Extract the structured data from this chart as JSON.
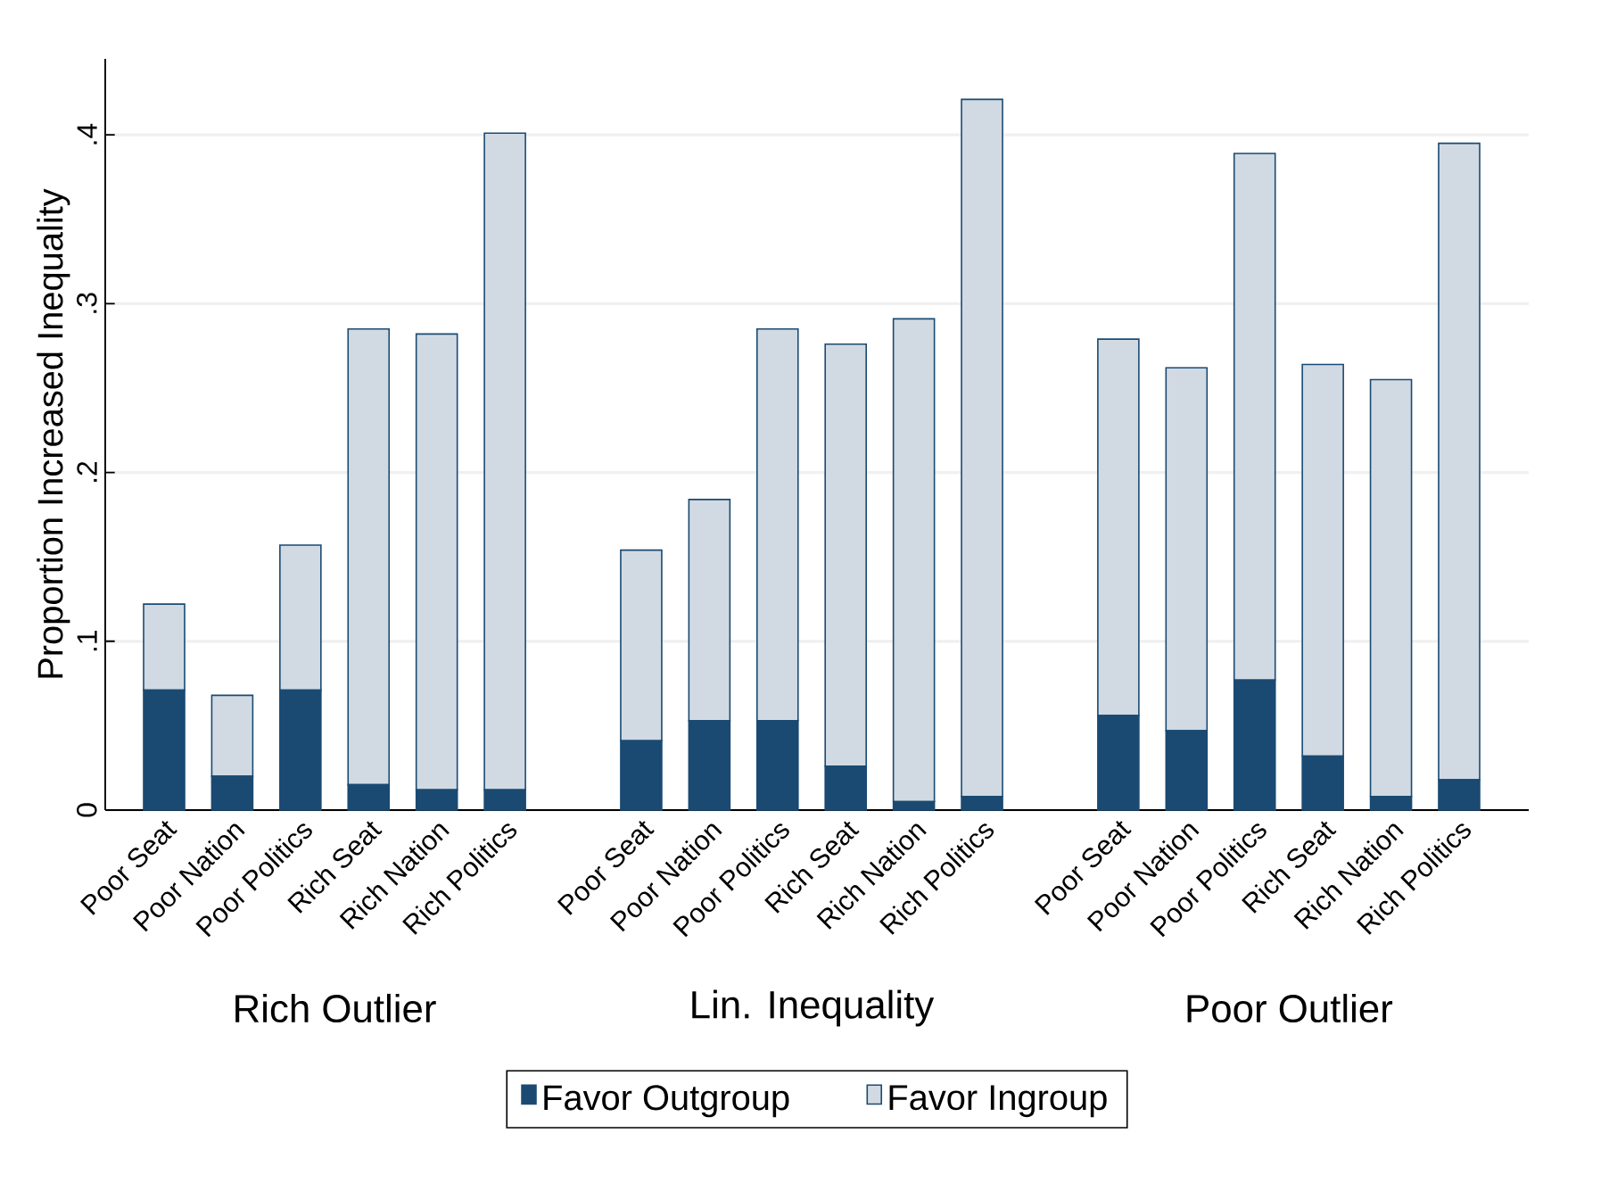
{
  "chart_data": {
    "type": "bar",
    "stacked": true,
    "ylabel": "Proportion Increased Inequality",
    "categories": [
      "Poor Seat",
      "Poor Nation",
      "Poor Politics",
      "Rich Seat",
      "Rich Nation",
      "Rich Politics",
      null,
      "Poor Seat",
      "Poor Nation",
      "Poor Politics",
      "Rich Seat",
      "Rich Nation",
      "Rich Politics",
      null,
      "Poor Seat",
      "Poor Nation",
      "Poor Politics",
      "Rich Seat",
      "Rich Nation",
      "Rich Politics"
    ],
    "series": [
      {
        "name": "Favor Outgroup",
        "color": "#1a4a72",
        "values": [
          0.071,
          0.02,
          0.071,
          0.015,
          0.012,
          0.012,
          null,
          0.041,
          0.053,
          0.053,
          0.026,
          0.005,
          0.008,
          null,
          0.056,
          0.047,
          0.077,
          0.032,
          0.008,
          0.018
        ]
      },
      {
        "name": "Favor Ingroup",
        "color": "#d1dae3",
        "values": [
          0.051,
          0.048,
          0.086,
          0.27,
          0.27,
          0.389,
          null,
          0.113,
          0.131,
          0.232,
          0.25,
          0.286,
          0.413,
          null,
          0.223,
          0.215,
          0.312,
          0.232,
          0.247,
          0.377
        ]
      }
    ],
    "annotations": [
      "Rich Outlier",
      "Lin. Inequality",
      "Poor Outlier"
    ],
    "ylim": [
      0,
      0.445
    ],
    "yticks": [
      0,
      {
        "value": 0.1,
        "label": ".1"
      },
      {
        "value": 0.2,
        "label": ".2"
      },
      {
        "value": 0.3,
        "label": ".3"
      },
      {
        "value": 0.4,
        "label": ".4"
      }
    ],
    "grid": "y",
    "legend": "bottom"
  }
}
